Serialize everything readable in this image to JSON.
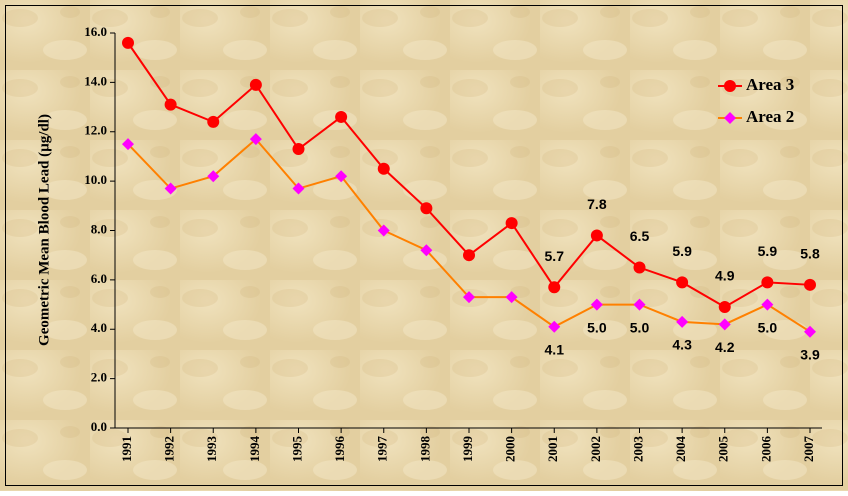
{
  "chart_data": {
    "type": "line",
    "y_label": "Geometric Mean Blood Lead (µg/dl)",
    "categories": [
      "1991",
      "1992",
      "1993",
      "1994",
      "1995",
      "1996",
      "1997",
      "1998",
      "1999",
      "2000",
      "2001",
      "2002",
      "2003",
      "2004",
      "2005",
      "2006",
      "2007"
    ],
    "series": [
      {
        "name": "Area 3",
        "color": "#ff0000",
        "marker": "circle",
        "marker_color": "#ff0000",
        "values": [
          15.6,
          13.1,
          12.4,
          13.9,
          11.3,
          12.6,
          10.5,
          8.9,
          7.0,
          8.3,
          5.7,
          7.8,
          6.5,
          5.9,
          4.9,
          5.9,
          5.8
        ],
        "value_labels": [
          null,
          null,
          null,
          null,
          null,
          null,
          null,
          null,
          null,
          null,
          "5.7",
          "7.8",
          "6.5",
          "5.9",
          "4.9",
          "5.9",
          "5.8"
        ]
      },
      {
        "name": "Area 2",
        "color": "#ff8000",
        "marker": "diamond",
        "marker_color": "#ff00ff",
        "values": [
          11.5,
          9.7,
          10.2,
          11.7,
          9.7,
          10.2,
          8.0,
          7.2,
          5.3,
          5.3,
          4.1,
          5.0,
          5.0,
          4.3,
          4.2,
          5.0,
          3.9
        ],
        "value_labels": [
          null,
          null,
          null,
          null,
          null,
          null,
          null,
          null,
          null,
          null,
          "4.1",
          "5.0",
          "5.0",
          "4.3",
          "4.2",
          "5.0",
          "3.9"
        ]
      }
    ],
    "ylim": [
      0,
      16
    ],
    "yticks": [
      {
        "value": 0,
        "label": "0.0"
      },
      {
        "value": 2,
        "label": "2.0"
      },
      {
        "value": 4,
        "label": "4.0"
      },
      {
        "value": 6,
        "label": "6.0"
      },
      {
        "value": 8,
        "label": "8.0"
      },
      {
        "value": 10,
        "label": "10.0"
      },
      {
        "value": 12,
        "label": "12.0"
      },
      {
        "value": 14,
        "label": "14.0"
      },
      {
        "value": 16,
        "label": "16.0"
      }
    ],
    "grid": false,
    "legend": "upper right"
  }
}
